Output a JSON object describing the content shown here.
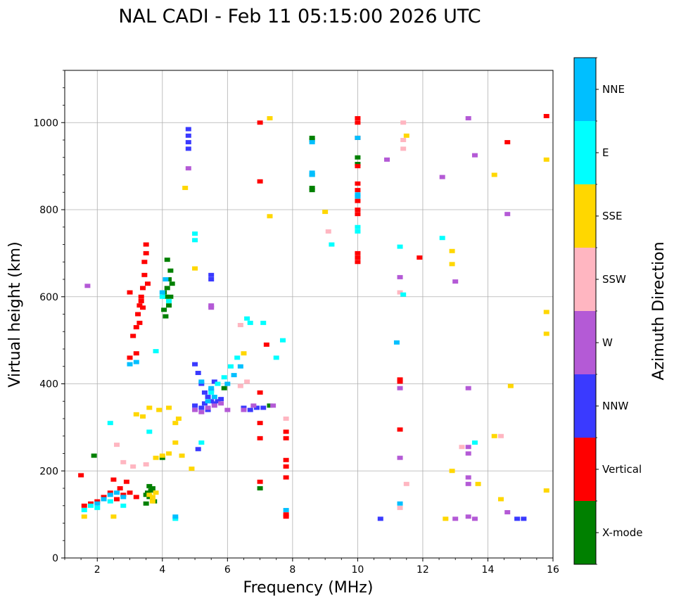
{
  "chart_data": {
    "type": "scatter",
    "title": "NAL CADI - Feb 11 05:15:00 2026 UTC",
    "xlabel": "Frequency (MHz)",
    "ylabel": "Virtual height (km)",
    "xlim": [
      1,
      16
    ],
    "ylim": [
      0,
      1120
    ],
    "xticks": [
      "2",
      "4",
      "6",
      "8",
      "10",
      "12",
      "14",
      "16"
    ],
    "yticks": [
      "0",
      "200",
      "400",
      "600",
      "800",
      "1000"
    ],
    "grid": true,
    "colorbar": {
      "label": "Azimuth Direction",
      "categories": [
        {
          "name": "X-mode",
          "color": "#008000"
        },
        {
          "name": "Vertical",
          "color": "#ff0000"
        },
        {
          "name": "NNW",
          "color": "#3a3aff"
        },
        {
          "name": "W",
          "color": "#b45ad6"
        },
        {
          "name": "SSW",
          "color": "#ffb6c1"
        },
        {
          "name": "SSE",
          "color": "#ffd700"
        },
        {
          "name": "E",
          "color": "#00ffff"
        },
        {
          "name": "NNE",
          "color": "#00bfff"
        }
      ]
    },
    "series": [
      {
        "name": "X-mode",
        "points": [
          [
            1.9,
            235
          ],
          [
            3.5,
            145
          ],
          [
            3.55,
            150
          ],
          [
            3.6,
            140
          ],
          [
            3.65,
            155
          ],
          [
            3.7,
            160
          ],
          [
            3.75,
            130
          ],
          [
            3.5,
            125
          ],
          [
            3.6,
            165
          ],
          [
            4.0,
            230
          ],
          [
            4.05,
            570
          ],
          [
            4.1,
            600
          ],
          [
            4.15,
            620
          ],
          [
            4.2,
            640
          ],
          [
            4.25,
            660
          ],
          [
            4.1,
            555
          ],
          [
            4.2,
            580
          ],
          [
            4.05,
            610
          ],
          [
            4.25,
            600
          ],
          [
            4.15,
            685
          ],
          [
            4.3,
            630
          ],
          [
            8.6,
            965
          ],
          [
            8.6,
            960
          ],
          [
            8.6,
            850
          ],
          [
            8.6,
            845
          ],
          [
            8.6,
            880
          ],
          [
            10.0,
            920
          ],
          [
            10.0,
            905
          ],
          [
            7.0,
            160
          ],
          [
            7.3,
            350
          ],
          [
            5.9,
            390
          ]
        ]
      },
      {
        "name": "Vertical",
        "points": [
          [
            1.5,
            190
          ],
          [
            1.6,
            120
          ],
          [
            1.8,
            125
          ],
          [
            2.0,
            130
          ],
          [
            2.2,
            140
          ],
          [
            2.4,
            150
          ],
          [
            2.6,
            135
          ],
          [
            2.8,
            145
          ],
          [
            3.0,
            150
          ],
          [
            3.2,
            140
          ],
          [
            2.5,
            180
          ],
          [
            2.7,
            160
          ],
          [
            2.9,
            175
          ],
          [
            3.1,
            510
          ],
          [
            3.2,
            530
          ],
          [
            3.25,
            560
          ],
          [
            3.3,
            580
          ],
          [
            3.35,
            600
          ],
          [
            3.4,
            620
          ],
          [
            3.45,
            650
          ],
          [
            3.5,
            700
          ],
          [
            3.5,
            720
          ],
          [
            3.2,
            470
          ],
          [
            3.0,
            460
          ],
          [
            3.3,
            540
          ],
          [
            3.4,
            575
          ],
          [
            3.45,
            680
          ],
          [
            3.55,
            630
          ],
          [
            3.0,
            610
          ],
          [
            3.35,
            590
          ],
          [
            7.0,
            380
          ],
          [
            7.0,
            310
          ],
          [
            7.0,
            275
          ],
          [
            7.0,
            175
          ],
          [
            7.0,
            1000
          ],
          [
            7.0,
            865
          ],
          [
            7.2,
            490
          ],
          [
            7.8,
            290
          ],
          [
            7.8,
            275
          ],
          [
            7.8,
            225
          ],
          [
            7.8,
            210
          ],
          [
            7.8,
            185
          ],
          [
            7.8,
            100
          ],
          [
            7.8,
            95
          ],
          [
            10.0,
            1010
          ],
          [
            10.0,
            1000
          ],
          [
            10.0,
            965
          ],
          [
            10.0,
            900
          ],
          [
            10.0,
            860
          ],
          [
            10.0,
            845
          ],
          [
            10.0,
            820
          ],
          [
            10.0,
            800
          ],
          [
            10.0,
            790
          ],
          [
            10.0,
            700
          ],
          [
            10.0,
            690
          ],
          [
            10.0,
            680
          ],
          [
            11.3,
            410
          ],
          [
            11.3,
            405
          ],
          [
            11.3,
            295
          ],
          [
            11.9,
            690
          ],
          [
            14.6,
            955
          ],
          [
            15.8,
            1015
          ]
        ]
      },
      {
        "name": "NNW",
        "points": [
          [
            4.8,
            985
          ],
          [
            4.8,
            970
          ],
          [
            4.8,
            955
          ],
          [
            4.8,
            940
          ],
          [
            5.0,
            445
          ],
          [
            5.1,
            425
          ],
          [
            5.2,
            400
          ],
          [
            5.3,
            380
          ],
          [
            5.4,
            370
          ],
          [
            5.5,
            360
          ],
          [
            5.6,
            355
          ],
          [
            5.7,
            360
          ],
          [
            5.8,
            365
          ],
          [
            5.0,
            350
          ],
          [
            5.2,
            345
          ],
          [
            5.4,
            340
          ],
          [
            5.5,
            385
          ],
          [
            5.6,
            405
          ],
          [
            5.3,
            355
          ],
          [
            5.5,
            650
          ],
          [
            5.5,
            640
          ],
          [
            6.5,
            345
          ],
          [
            6.7,
            340
          ],
          [
            6.9,
            345
          ],
          [
            7.1,
            345
          ],
          [
            10.7,
            90
          ],
          [
            14.9,
            90
          ],
          [
            15.1,
            90
          ],
          [
            5.1,
            250
          ]
        ]
      },
      {
        "name": "W",
        "points": [
          [
            1.7,
            625
          ],
          [
            4.8,
            895
          ],
          [
            5.5,
            580
          ],
          [
            5.5,
            575
          ],
          [
            5.0,
            340
          ],
          [
            5.2,
            335
          ],
          [
            5.4,
            345
          ],
          [
            5.6,
            350
          ],
          [
            5.8,
            355
          ],
          [
            6.0,
            340
          ],
          [
            6.5,
            340
          ],
          [
            6.8,
            350
          ],
          [
            7.4,
            350
          ],
          [
            11.3,
            645
          ],
          [
            11.3,
            390
          ],
          [
            11.3,
            230
          ],
          [
            12.6,
            875
          ],
          [
            13.0,
            635
          ],
          [
            13.4,
            1010
          ],
          [
            13.4,
            390
          ],
          [
            13.4,
            255
          ],
          [
            13.4,
            240
          ],
          [
            13.4,
            185
          ],
          [
            13.4,
            170
          ],
          [
            13.4,
            95
          ],
          [
            13.6,
            925
          ],
          [
            13.6,
            90
          ],
          [
            14.6,
            790
          ],
          [
            14.6,
            105
          ],
          [
            13.0,
            90
          ],
          [
            10.9,
            915
          ]
        ]
      },
      {
        "name": "SSW",
        "points": [
          [
            2.6,
            260
          ],
          [
            2.8,
            220
          ],
          [
            3.1,
            210
          ],
          [
            3.5,
            215
          ],
          [
            6.4,
            535
          ],
          [
            6.6,
            405
          ],
          [
            6.4,
            395
          ],
          [
            9.1,
            750
          ],
          [
            11.3,
            610
          ],
          [
            11.4,
            1000
          ],
          [
            11.4,
            960
          ],
          [
            11.4,
            940
          ],
          [
            11.3,
            115
          ],
          [
            11.5,
            170
          ],
          [
            13.2,
            255
          ],
          [
            14.4,
            280
          ],
          [
            7.8,
            320
          ]
        ]
      },
      {
        "name": "SSE",
        "points": [
          [
            1.6,
            95
          ],
          [
            2.5,
            95
          ],
          [
            3.2,
            330
          ],
          [
            3.4,
            325
          ],
          [
            3.6,
            345
          ],
          [
            3.9,
            340
          ],
          [
            4.2,
            345
          ],
          [
            4.5,
            320
          ],
          [
            3.8,
            230
          ],
          [
            4.0,
            235
          ],
          [
            4.2,
            240
          ],
          [
            4.4,
            265
          ],
          [
            4.6,
            235
          ],
          [
            4.9,
            205
          ],
          [
            3.6,
            145
          ],
          [
            3.7,
            140
          ],
          [
            3.8,
            150
          ],
          [
            3.7,
            130
          ],
          [
            4.4,
            310
          ],
          [
            6.5,
            470
          ],
          [
            7.3,
            1010
          ],
          [
            7.3,
            785
          ],
          [
            9.0,
            795
          ],
          [
            11.5,
            970
          ],
          [
            12.7,
            90
          ],
          [
            12.9,
            705
          ],
          [
            12.9,
            675
          ],
          [
            12.9,
            200
          ],
          [
            13.7,
            170
          ],
          [
            14.2,
            880
          ],
          [
            14.2,
            280
          ],
          [
            14.4,
            135
          ],
          [
            14.7,
            395
          ],
          [
            15.8,
            915
          ],
          [
            15.8,
            565
          ],
          [
            15.8,
            515
          ],
          [
            15.8,
            155
          ],
          [
            4.7,
            850
          ],
          [
            5.0,
            665
          ]
        ]
      },
      {
        "name": "E",
        "points": [
          [
            1.6,
            110
          ],
          [
            1.8,
            120
          ],
          [
            2.0,
            115
          ],
          [
            2.4,
            130
          ],
          [
            2.8,
            120
          ],
          [
            4.0,
            600
          ],
          [
            4.2,
            590
          ],
          [
            3.8,
            475
          ],
          [
            3.6,
            290
          ],
          [
            4.4,
            90
          ],
          [
            5.0,
            745
          ],
          [
            5.0,
            730
          ],
          [
            5.5,
            380
          ],
          [
            5.7,
            400
          ],
          [
            5.9,
            415
          ],
          [
            6.1,
            440
          ],
          [
            6.3,
            460
          ],
          [
            6.6,
            550
          ],
          [
            6.7,
            540
          ],
          [
            7.1,
            540
          ],
          [
            7.5,
            460
          ],
          [
            7.7,
            500
          ],
          [
            9.2,
            720
          ],
          [
            10.0,
            760
          ],
          [
            10.0,
            750
          ],
          [
            11.3,
            715
          ],
          [
            11.4,
            605
          ],
          [
            12.6,
            735
          ],
          [
            13.6,
            265
          ],
          [
            2.4,
            310
          ],
          [
            5.2,
            265
          ]
        ]
      },
      {
        "name": "NNE",
        "points": [
          [
            2.0,
            125
          ],
          [
            2.2,
            135
          ],
          [
            2.4,
            145
          ],
          [
            2.6,
            150
          ],
          [
            2.8,
            140
          ],
          [
            3.2,
            450
          ],
          [
            3.0,
            445
          ],
          [
            4.1,
            640
          ],
          [
            4.0,
            610
          ],
          [
            5.5,
            390
          ],
          [
            5.6,
            370
          ],
          [
            5.4,
            360
          ],
          [
            6.0,
            400
          ],
          [
            6.2,
            420
          ],
          [
            6.4,
            440
          ],
          [
            5.2,
            405
          ],
          [
            8.6,
            955
          ],
          [
            8.6,
            885
          ],
          [
            8.6,
            880
          ],
          [
            10.0,
            835
          ],
          [
            10.0,
            830
          ],
          [
            10.0,
            965
          ],
          [
            11.2,
            495
          ],
          [
            11.3,
            125
          ],
          [
            7.8,
            110
          ],
          [
            4.4,
            95
          ]
        ]
      }
    ]
  }
}
